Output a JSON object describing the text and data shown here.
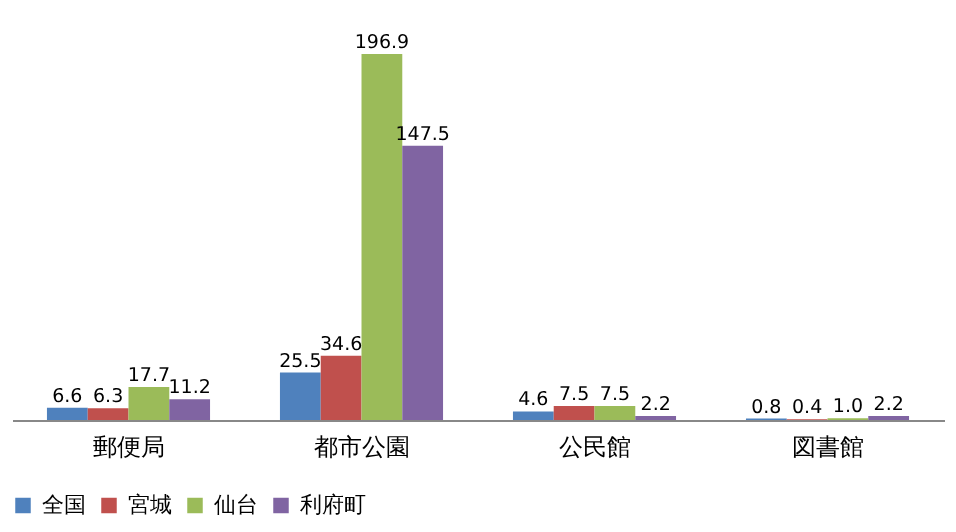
{
  "chart_data": {
    "type": "bar",
    "categories": [
      "郵便局",
      "都市公園",
      "公民館",
      "図書館"
    ],
    "series": [
      {
        "name": "全国",
        "color": "#4f81bd",
        "values": [
          6.6,
          25.5,
          4.6,
          0.8
        ],
        "value_labels": [
          "6.6",
          "25.5",
          "4.6",
          "0.8"
        ]
      },
      {
        "name": "宮城",
        "color": "#c0504d",
        "values": [
          6.3,
          34.6,
          7.5,
          0.4
        ],
        "value_labels": [
          "6.3",
          "34.6",
          "7.5",
          "0.4"
        ]
      },
      {
        "name": "仙台",
        "color": "#9bbb59",
        "values": [
          17.7,
          196.9,
          7.5,
          1.0
        ],
        "value_labels": [
          "17.7",
          "196.9",
          "7.5",
          "1.0"
        ]
      },
      {
        "name": "利府町",
        "color": "#8064a2",
        "values": [
          11.2,
          147.5,
          2.2,
          2.2
        ],
        "value_labels": [
          "11.2",
          "147.5",
          "2.2",
          "2.2"
        ]
      }
    ],
    "grid": false,
    "legend": "bottom"
  }
}
